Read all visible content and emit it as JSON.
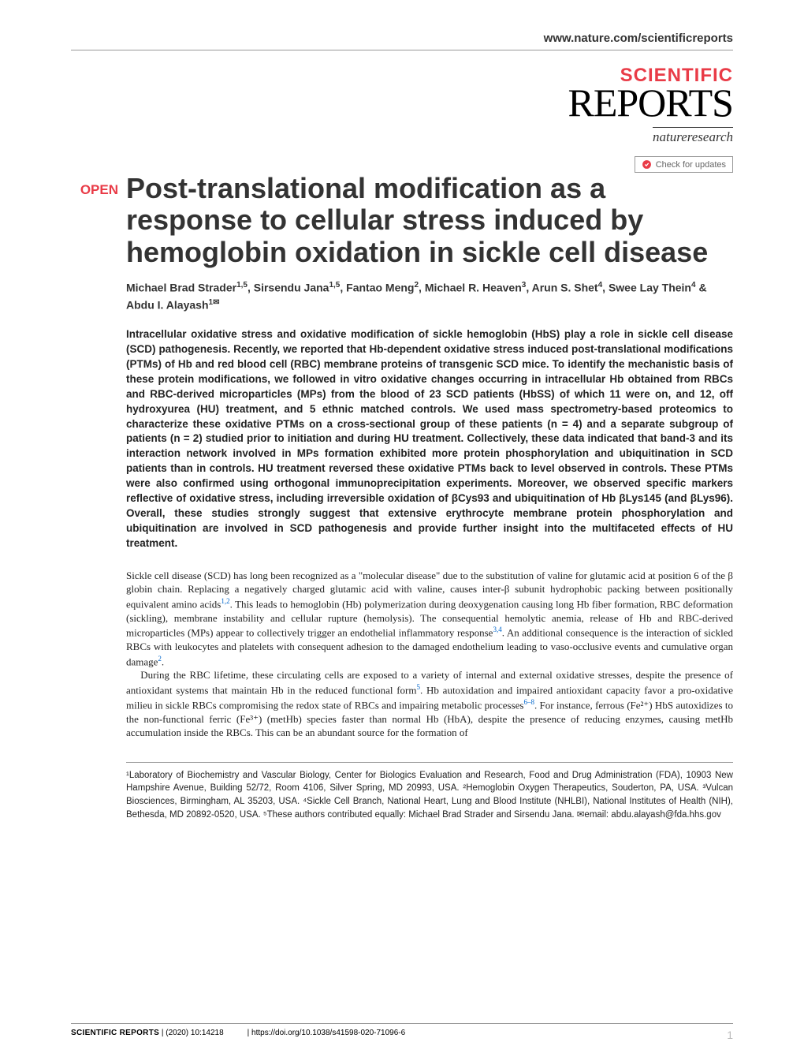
{
  "colors": {
    "accent": "#e93b47",
    "link": "#0066cc",
    "text": "#222",
    "border": "#999"
  },
  "header": {
    "site_url": "www.nature.com/scientificreports",
    "logo_top": "SCIENTIFIC",
    "logo_bottom": "REPORTS",
    "publisher": "natureresearch",
    "check_updates": "Check for updates"
  },
  "badge": {
    "open": "OPEN"
  },
  "article": {
    "title": "Post-translational modification as a response to cellular stress induced by hemoglobin oxidation in sickle cell disease",
    "authors_html": "Michael Brad Strader<sup>1,5</sup>, Sirsendu Jana<sup>1,5</sup>, Fantao Meng<sup>2</sup>, Michael R. Heaven<sup>3</sup>, Arun S. Shet<sup>4</sup>, Swee Lay Thein<sup>4</sup> & Abdu I. Alayash<sup>1✉</sup>",
    "abstract": "Intracellular oxidative stress and oxidative modification of sickle hemoglobin (HbS) play a role in sickle cell disease (SCD) pathogenesis. Recently, we reported that Hb-dependent oxidative stress induced post-translational modifications (PTMs) of Hb and red blood cell (RBC) membrane proteins of transgenic SCD mice. To identify the mechanistic basis of these protein modifications, we followed in vitro oxidative changes occurring in intracellular Hb obtained from RBCs and RBC-derived microparticles (MPs) from the blood of 23 SCD patients (HbSS) of which 11 were on, and 12, off hydroxyurea (HU) treatment, and 5 ethnic matched controls. We used mass spectrometry-based proteomics to characterize these oxidative PTMs on a cross-sectional group of these patients (n = 4) and a separate subgroup of patients (n = 2) studied prior to initiation and during HU treatment. Collectively, these data indicated that band-3 and its interaction network involved in MPs formation exhibited more protein phosphorylation and ubiquitination in SCD patients than in controls. HU treatment reversed these oxidative PTMs back to level observed in controls. These PTMs were also confirmed using orthogonal immunoprecipitation experiments. Moreover, we observed specific markers reflective of oxidative stress, including irreversible oxidation of βCys93 and ubiquitination of Hb βLys145 (and βLys96). Overall, these studies strongly suggest that extensive erythrocyte membrane protein phosphorylation and ubiquitination are involved in SCD pathogenesis and provide further insight into the multifaceted effects of HU treatment.",
    "body_p1": "Sickle cell disease (SCD) has long been recognized as a \"molecular disease\" due to the substitution of valine for glutamic acid at position 6 of the β globin chain. Replacing a negatively charged glutamic acid with valine, causes inter-β subunit hydrophobic packing between positionally equivalent amino acids",
    "body_p1_ref1": "1,2",
    "body_p1b": ". This leads to hemoglobin (Hb) polymerization during deoxygenation causing long Hb fiber formation, RBC deformation (sickling), membrane instability and cellular rupture (hemolysis). The consequential hemolytic anemia, release of Hb and RBC-derived microparticles (MPs) appear to collectively trigger an endothelial inflammatory response",
    "body_p1_ref2": "3,4",
    "body_p1c": ". An additional consequence is the interaction of sickled RBCs with leukocytes and platelets with consequent adhesion to the damaged endothelium leading to vaso-occlusive events and cumulative organ damage",
    "body_p1_ref3": "2",
    "body_p1d": ".",
    "body_p2": "During the RBC lifetime, these circulating cells are exposed to a variety of internal and external oxidative stresses, despite the presence of antioxidant systems that maintain Hb in the reduced functional form",
    "body_p2_ref1": "5",
    "body_p2b": ". Hb autoxidation and impaired antioxidant capacity favor a pro-oxidative milieu in sickle RBCs compromising the redox state of RBCs and impairing metabolic processes",
    "body_p2_ref2": "6–8",
    "body_p2c": ". For instance, ferrous (Fe²⁺) HbS autoxidizes to the non-functional ferric (Fe³⁺) (metHb) species faster than normal Hb (HbA), despite the presence of reducing enzymes, causing metHb accumulation inside the RBCs. This can be an abundant source for the formation of",
    "affiliations": "¹Laboratory of Biochemistry and Vascular Biology, Center for Biologics Evaluation and Research, Food and Drug Administration (FDA), 10903 New Hampshire Avenue, Building 52/72, Room 4106, Silver Spring, MD 20993, USA. ²Hemoglobin Oxygen Therapeutics, Souderton, PA, USA. ³Vulcan Biosciences, Birmingham, AL 35203, USA. ⁴Sickle Cell Branch, National Heart, Lung and Blood Institute (NHLBI), National Institutes of Health (NIH), Bethesda, MD 20892-0520, USA. ⁵These authors contributed equally: Michael Brad Strader and Sirsendu Jana. ✉email: abdu.alayash@fda.hhs.gov"
  },
  "footer": {
    "journal": "SCIENTIFIC REPORTS",
    "citation": "(2020) 10:14218",
    "doi": "https://doi.org/10.1038/s41598-020-71096-6",
    "page": "1"
  }
}
